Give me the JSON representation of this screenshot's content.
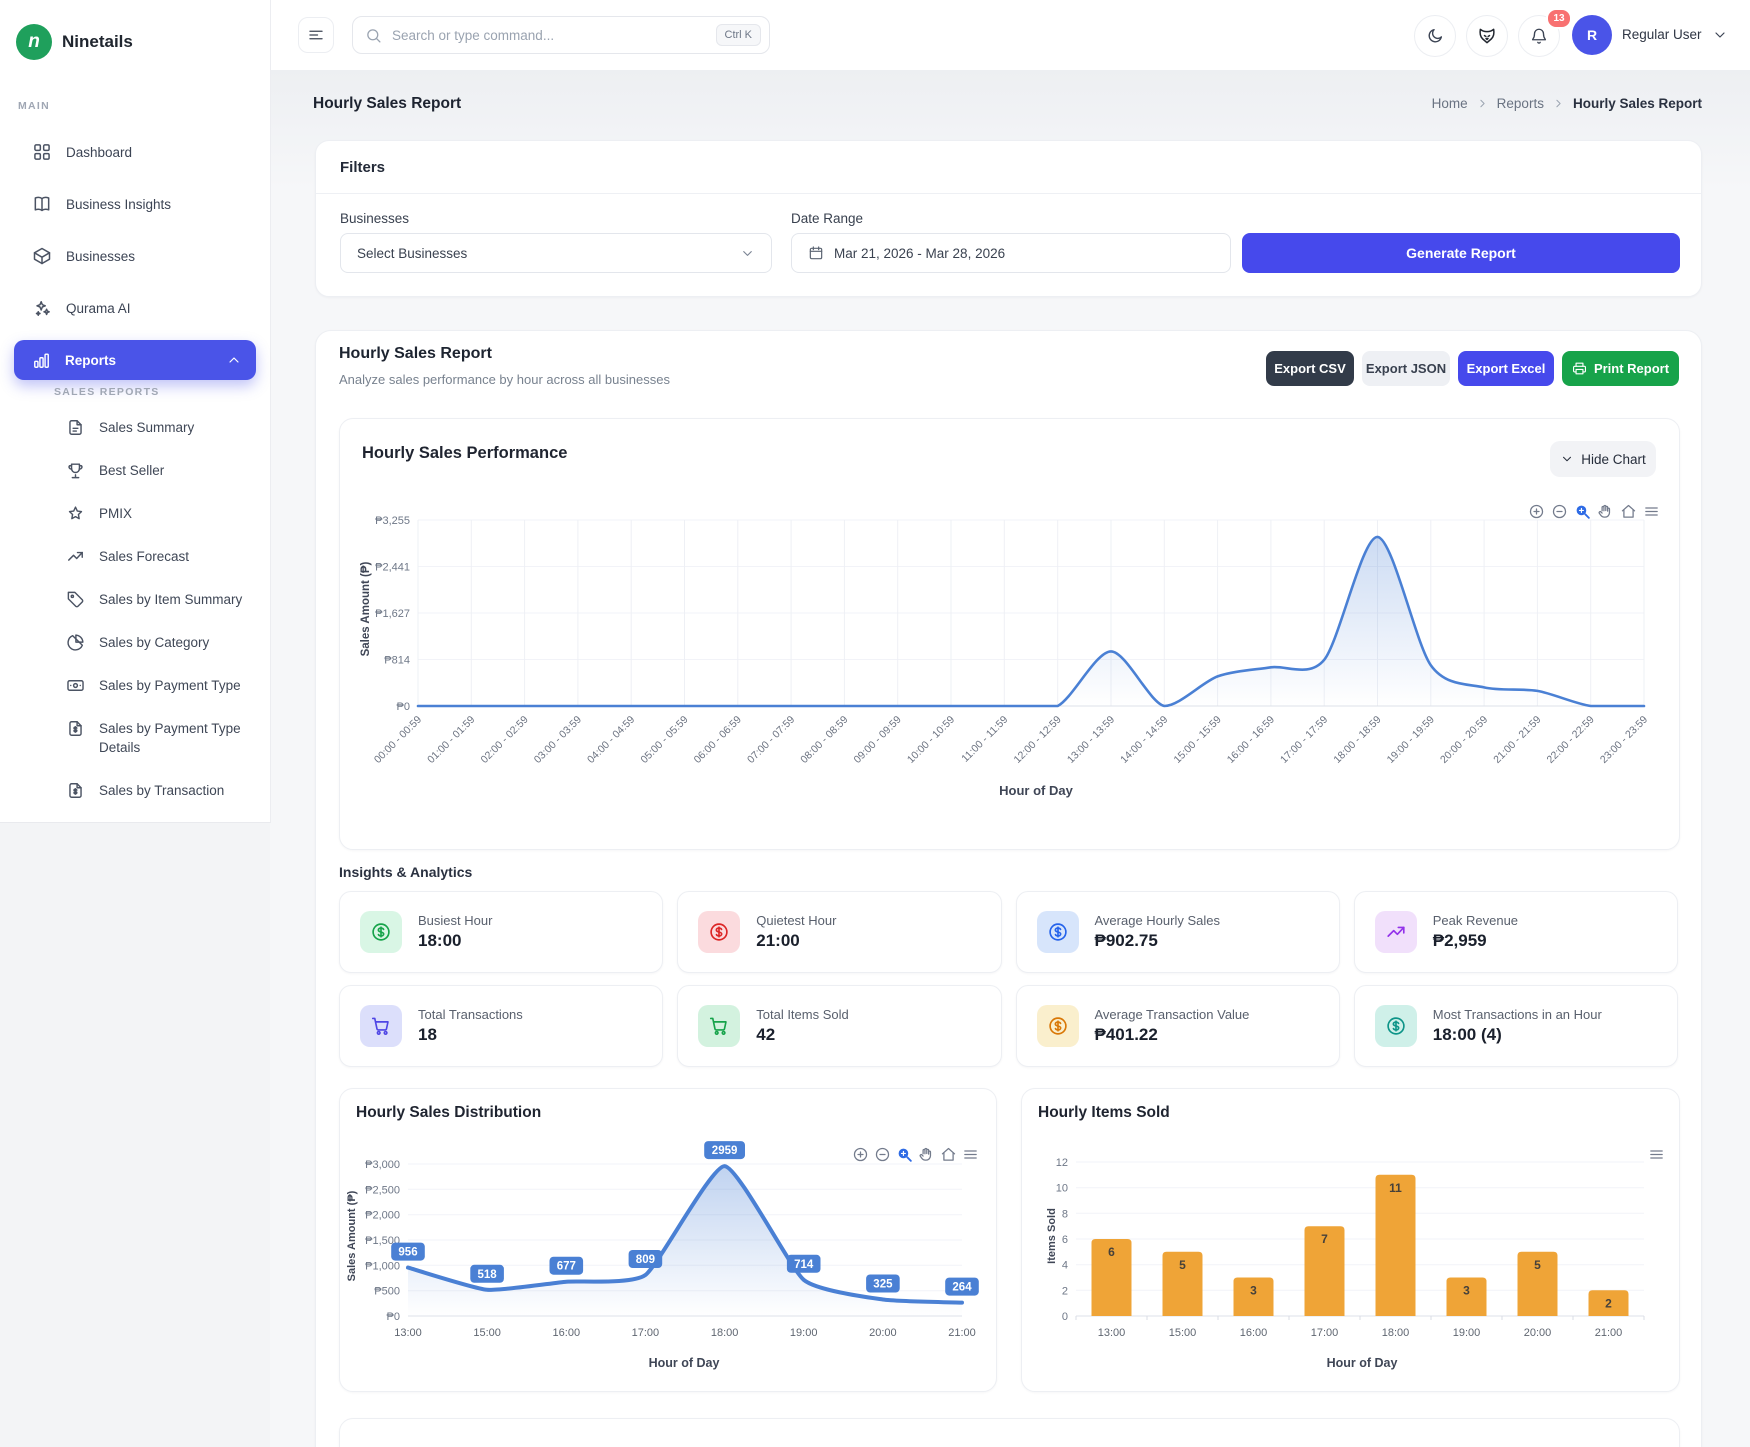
{
  "brand": {
    "name": "Ninetails",
    "logo_letter": "n"
  },
  "topbar": {
    "search_placeholder": "Search or type command...",
    "kbd": "Ctrl K",
    "notification_count": "13",
    "user": {
      "name": "Regular User",
      "avatar_initial": "R"
    }
  },
  "sidebar": {
    "section_label": "MAIN",
    "items": [
      {
        "label": "Dashboard",
        "icon": "dashboard"
      },
      {
        "label": "Business Insights",
        "icon": "book"
      },
      {
        "label": "Businesses",
        "icon": "package"
      },
      {
        "label": "Qurama AI",
        "icon": "sparkles"
      }
    ],
    "reports": {
      "label": "Reports",
      "icon": "bar-chart"
    },
    "sub_section_label": "SALES REPORTS",
    "sub_items": [
      {
        "label": "Sales Summary",
        "icon": "file-text"
      },
      {
        "label": "Best Seller",
        "icon": "trophy"
      },
      {
        "label": "PMIX",
        "icon": "star"
      },
      {
        "label": "Sales Forecast",
        "icon": "trend-up"
      },
      {
        "label": "Sales by Item Summary",
        "icon": "tag"
      },
      {
        "label": "Sales by Category",
        "icon": "pie-chart"
      },
      {
        "label": "Sales by Payment Type",
        "icon": "banknote"
      },
      {
        "label": "Sales by Payment Type Details",
        "icon": "file-dollar"
      },
      {
        "label": "Sales by Transaction",
        "icon": "file-dollar"
      }
    ]
  },
  "page": {
    "title": "Hourly Sales Report",
    "breadcrumb": [
      "Home",
      "Reports",
      "Hourly Sales Report"
    ]
  },
  "filters": {
    "title": "Filters",
    "businesses_label": "Businesses",
    "businesses_value": "Select Businesses",
    "date_label": "Date Range",
    "date_value": "Mar 21, 2026 - Mar 28, 2026",
    "generate_label": "Generate Report"
  },
  "report": {
    "title": "Hourly Sales Report",
    "subtitle": "Analyze sales performance by hour across all businesses",
    "export_csv": "Export CSV",
    "export_json": "Export JSON",
    "export_excel": "Export Excel",
    "print": "Print Report"
  },
  "performance_card": {
    "hide_chart": "Hide Chart",
    "toolbar": [
      "zoom-in",
      "zoom-out",
      "selection-zoom",
      "pan",
      "reset-home",
      "menu"
    ]
  },
  "distribution_card": {
    "toolbar": [
      "zoom-in",
      "zoom-out",
      "selection-zoom",
      "pan",
      "reset-home",
      "menu"
    ]
  },
  "items_card": {
    "toolbar": [
      "menu"
    ]
  },
  "insights": {
    "title": "Insights & Analytics",
    "cards": [
      {
        "label": "Busiest Hour",
        "value": "18:00",
        "icon": "dollar",
        "fg": "#16a34a",
        "bg": "#d9f6e5"
      },
      {
        "label": "Quietest Hour",
        "value": "21:00",
        "icon": "dollar",
        "fg": "#dc2626",
        "bg": "#fbdbde"
      },
      {
        "label": "Average Hourly Sales",
        "value": "₱902.75",
        "icon": "dollar",
        "fg": "#2563eb",
        "bg": "#d7e5fb"
      },
      {
        "label": "Peak Revenue",
        "value": "₱2,959",
        "icon": "trend-up",
        "fg": "#9333ea",
        "bg": "#f1e0fb"
      },
      {
        "label": "Total Transactions",
        "value": "18",
        "icon": "cart",
        "fg": "#4f46e5",
        "bg": "#dcdffb"
      },
      {
        "label": "Total Items Sold",
        "value": "42",
        "icon": "cart",
        "fg": "#16a34a",
        "bg": "#d3f2df"
      },
      {
        "label": "Average Transaction Value",
        "value": "₱401.22",
        "icon": "dollar",
        "fg": "#d97706",
        "bg": "#faefcd"
      },
      {
        "label": "Most Transactions in an Hour",
        "value": "18:00 (4)",
        "icon": "dollar",
        "fg": "#0d9488",
        "bg": "#cff0e9"
      }
    ]
  },
  "chart_data": [
    {
      "id": "performance",
      "type": "area",
      "title": "Hourly Sales Performance",
      "xlabel": "Hour of Day",
      "ylabel": "Sales Amount (₱)",
      "categories": [
        "00:00 - 00:59",
        "01:00 - 01:59",
        "02:00 - 02:59",
        "03:00 - 03:59",
        "04:00 - 04:59",
        "05:00 - 05:59",
        "06:00 - 06:59",
        "07:00 - 07:59",
        "08:00 - 08:59",
        "09:00 - 09:59",
        "10:00 - 10:59",
        "11:00 - 11:59",
        "12:00 - 12:59",
        "13:00 - 13:59",
        "14:00 - 14:59",
        "15:00 - 15:59",
        "16:00 - 16:59",
        "17:00 - 17:59",
        "18:00 - 18:59",
        "19:00 - 19:59",
        "20:00 - 20:59",
        "21:00 - 21:59",
        "22:00 - 22:59",
        "23:00 - 23:59"
      ],
      "values": [
        0,
        0,
        0,
        0,
        0,
        0,
        0,
        0,
        0,
        0,
        0,
        0,
        0,
        956,
        0,
        518,
        677,
        809,
        2959,
        714,
        325,
        264,
        0,
        0
      ],
      "ylim": [
        0,
        3255
      ],
      "y_ticks": [
        {
          "v": 0,
          "label": "₱0"
        },
        {
          "v": 814,
          "label": "₱814"
        },
        {
          "v": 1627,
          "label": "₱1,627"
        },
        {
          "v": 2441,
          "label": "₱2,441"
        },
        {
          "v": 3255,
          "label": "₱3,255"
        }
      ],
      "line_color": "#4a80d4"
    },
    {
      "id": "distribution",
      "type": "area",
      "title": "Hourly Sales Distribution",
      "xlabel": "Hour of Day",
      "ylabel": "Sales Amount (₱)",
      "categories": [
        "13:00",
        "15:00",
        "16:00",
        "17:00",
        "18:00",
        "19:00",
        "20:00",
        "21:00"
      ],
      "values": [
        956,
        518,
        677,
        809,
        2959,
        714,
        325,
        264
      ],
      "ylim": [
        0,
        3000
      ],
      "y_ticks": [
        {
          "v": 0,
          "label": "₱0"
        },
        {
          "v": 500,
          "label": "₱500"
        },
        {
          "v": 1000,
          "label": "₱1,000"
        },
        {
          "v": 1500,
          "label": "₱1,500"
        },
        {
          "v": 2000,
          "label": "₱2,000"
        },
        {
          "v": 2500,
          "label": "₱2,500"
        },
        {
          "v": 3000,
          "label": "₱3,000"
        }
      ],
      "point_labels": [
        "956",
        "518",
        "677",
        "809",
        "2959",
        "714",
        "325",
        "264"
      ],
      "line_color": "#4a80d4"
    },
    {
      "id": "items_sold",
      "type": "bar",
      "title": "Hourly Items Sold",
      "xlabel": "Hour of Day",
      "ylabel": "Items Sold",
      "categories": [
        "13:00",
        "15:00",
        "16:00",
        "17:00",
        "18:00",
        "19:00",
        "20:00",
        "21:00"
      ],
      "values": [
        6,
        5,
        3,
        7,
        11,
        3,
        5,
        2
      ],
      "ylim": [
        0,
        12
      ],
      "y_ticks": [
        {
          "v": 0,
          "label": "0"
        },
        {
          "v": 2,
          "label": "2"
        },
        {
          "v": 4,
          "label": "4"
        },
        {
          "v": 6,
          "label": "6"
        },
        {
          "v": 8,
          "label": "8"
        },
        {
          "v": 10,
          "label": "10"
        },
        {
          "v": 12,
          "label": "12"
        }
      ],
      "bar_color": "#efa437"
    }
  ]
}
